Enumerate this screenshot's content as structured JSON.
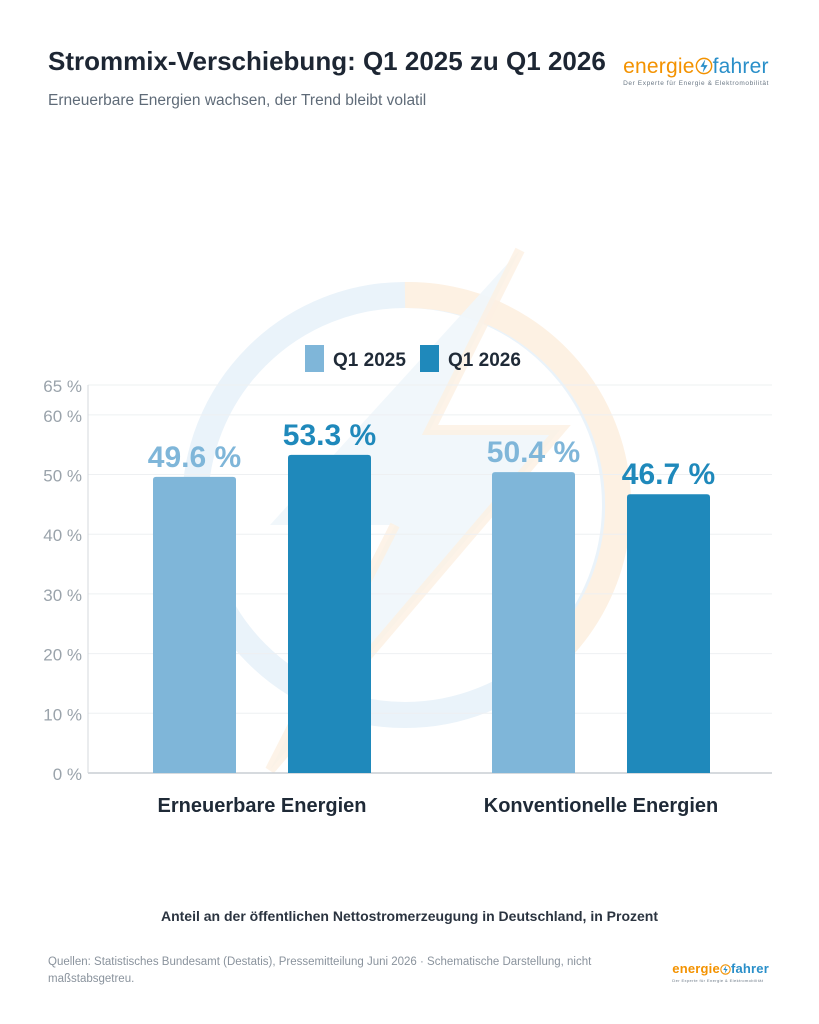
{
  "header": {
    "title": "Strommix-Verschiebung: Q1 2025 zu Q1 2026",
    "subtitle": "Erneuerbare Energien wachsen, der Trend bleibt volatil"
  },
  "logo": {
    "word_left": "energie",
    "word_right": "fahrer",
    "tagline": "Der Experte für Energie & Elektromobilität"
  },
  "chart_data": {
    "type": "bar",
    "categories": [
      "Erneuerbare Energien",
      "Konventionelle Energien"
    ],
    "series": [
      {
        "name": "Q1 2025",
        "values": [
          49.6,
          50.4
        ],
        "color": "#7fb6d9"
      },
      {
        "name": "Q1 2026",
        "values": [
          53.3,
          46.7
        ],
        "color": "#1f89bb"
      }
    ],
    "data_labels": [
      [
        "49.6 %",
        "50.4 %"
      ],
      [
        "53.3 %",
        "46.7 %"
      ]
    ],
    "ylim": [
      0,
      65
    ],
    "y_ticks": [
      0,
      10,
      20,
      30,
      40,
      50,
      60,
      65
    ],
    "y_tick_labels": [
      "0 %",
      "10 %",
      "20 %",
      "30 %",
      "40 %",
      "50 %",
      "60 %",
      "65 %"
    ],
    "grid": true,
    "legend_position": "top-center"
  },
  "caption": "Anteil an der öffentlichen Nettostromerzeugung in Deutschland, in Prozent",
  "sources": "Quellen: Statistisches Bundesamt (Destatis), Pressemitteilung Juni 2026 · Schematische Darstellung, nicht maßstabsgetreu.",
  "colors": {
    "accent_orange": "#f39200",
    "accent_blue": "#2a8fc9",
    "watermark": "#e6f1f8"
  }
}
